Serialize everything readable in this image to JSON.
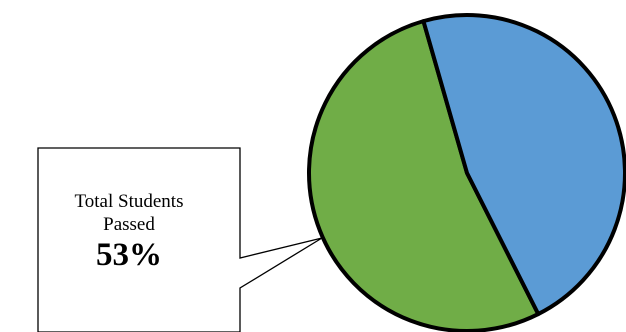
{
  "chart_data": {
    "type": "pie",
    "slices": [
      {
        "label": "Total Students Passed",
        "value": 53,
        "color": "#70AD47"
      },
      {
        "label": "",
        "value": 47,
        "color": "#5B9BD5"
      }
    ],
    "title": "",
    "legend": "none"
  },
  "callout": {
    "line1": "Total Students",
    "line2": "Passed",
    "value": "53%"
  },
  "colors": {
    "passed": "#70AD47",
    "other": "#5B9BD5",
    "outline": "#000000"
  }
}
